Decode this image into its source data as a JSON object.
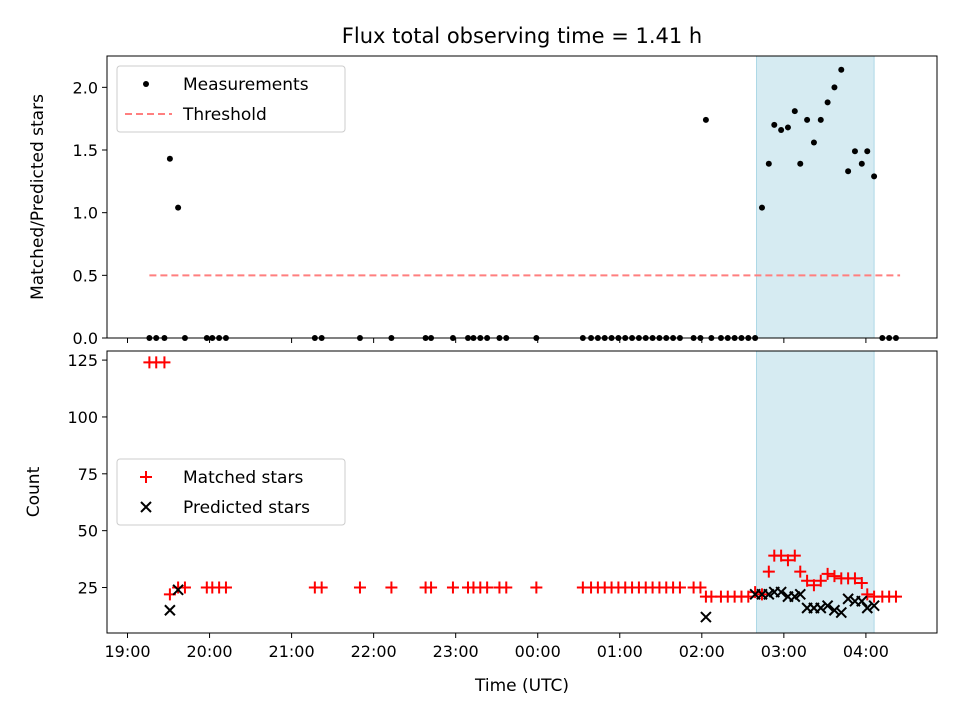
{
  "chart_data": [
    {
      "type": "scatter",
      "title": "Flux total observing time = 1.41 h",
      "xlabel": "",
      "ylabel": "Matched/Predicted stars",
      "ylim": [
        0,
        2.25
      ],
      "yticks": [
        "0.0",
        "0.5",
        "1.0",
        "1.5",
        "2.0"
      ],
      "xlim": [
        "18:45",
        "04:52"
      ],
      "grid": false,
      "legend_position": "top-left",
      "highlight_span": {
        "start": "02:40",
        "end": "04:06",
        "color": "#add8e6"
      },
      "series": [
        {
          "name": "Measurements",
          "marker": "dot",
          "color": "#000000",
          "points": [
            [
              "19:16",
              0
            ],
            [
              "19:21",
              0
            ],
            [
              "19:27",
              0
            ],
            [
              "19:31",
              1.43
            ],
            [
              "19:37",
              1.04
            ],
            [
              "19:42",
              0
            ],
            [
              "19:58",
              0
            ],
            [
              "20:02",
              0
            ],
            [
              "20:07",
              0
            ],
            [
              "20:12",
              0
            ],
            [
              "21:17",
              0
            ],
            [
              "21:22",
              0
            ],
            [
              "21:50",
              0
            ],
            [
              "22:13",
              0
            ],
            [
              "22:38",
              0
            ],
            [
              "22:42",
              0
            ],
            [
              "22:58",
              0
            ],
            [
              "23:09",
              0
            ],
            [
              "23:13",
              0
            ],
            [
              "23:18",
              0
            ],
            [
              "23:23",
              0
            ],
            [
              "23:32",
              0
            ],
            [
              "23:37",
              0
            ],
            [
              "23:59",
              0
            ],
            [
              "00:33",
              0
            ],
            [
              "00:39",
              0
            ],
            [
              "00:44",
              0
            ],
            [
              "00:49",
              0
            ],
            [
              "00:54",
              0
            ],
            [
              "00:59",
              0
            ],
            [
              "01:04",
              0
            ],
            [
              "01:09",
              0
            ],
            [
              "01:14",
              0
            ],
            [
              "01:19",
              0
            ],
            [
              "01:24",
              0
            ],
            [
              "01:29",
              0
            ],
            [
              "01:34",
              0
            ],
            [
              "01:39",
              0
            ],
            [
              "01:44",
              0
            ],
            [
              "01:54",
              0
            ],
            [
              "01:59",
              0
            ],
            [
              "02:03",
              1.74
            ],
            [
              "02:07",
              0
            ],
            [
              "02:14",
              0
            ],
            [
              "02:19",
              0
            ],
            [
              "02:24",
              0
            ],
            [
              "02:29",
              0
            ],
            [
              "02:34",
              0
            ],
            [
              "02:39",
              0
            ],
            [
              "02:44",
              1.04
            ],
            [
              "02:49",
              1.39
            ],
            [
              "02:53",
              1.7
            ],
            [
              "02:58",
              1.66
            ],
            [
              "03:03",
              1.68
            ],
            [
              "03:08",
              1.81
            ],
            [
              "03:12",
              1.39
            ],
            [
              "03:17",
              1.74
            ],
            [
              "03:22",
              1.56
            ],
            [
              "03:27",
              1.74
            ],
            [
              "03:32",
              1.88
            ],
            [
              "03:37",
              2.0
            ],
            [
              "03:42",
              2.14
            ],
            [
              "03:47",
              1.33
            ],
            [
              "03:52",
              1.49
            ],
            [
              "03:57",
              1.39
            ],
            [
              "04:01",
              1.49
            ],
            [
              "04:06",
              1.29
            ],
            [
              "04:12",
              0
            ],
            [
              "04:17",
              0
            ],
            [
              "04:22",
              0
            ]
          ]
        },
        {
          "name": "Threshold",
          "line_style": "dashed",
          "color": "#ff7f7f",
          "points": [
            [
              "19:16",
              0.5
            ],
            [
              "04:25",
              0.5
            ]
          ]
        }
      ]
    },
    {
      "type": "scatter",
      "title": "",
      "xlabel": "Time (UTC)",
      "ylabel": "Count",
      "ylim": [
        5,
        129
      ],
      "yticks": [
        "25",
        "50",
        "75",
        "100",
        "125"
      ],
      "xticks": [
        "19:00",
        "20:00",
        "21:00",
        "22:00",
        "23:00",
        "00:00",
        "01:00",
        "02:00",
        "03:00",
        "04:00"
      ],
      "xlim": [
        "18:45",
        "04:52"
      ],
      "grid": false,
      "legend_position": "center-left",
      "highlight_span": {
        "start": "02:40",
        "end": "04:06",
        "color": "#add8e6"
      },
      "series": [
        {
          "name": "Matched stars",
          "marker": "plus",
          "color": "#ff0000",
          "points": [
            [
              "19:16",
              124
            ],
            [
              "19:21",
              124
            ],
            [
              "19:27",
              124
            ],
            [
              "19:31",
              22
            ],
            [
              "19:37",
              25
            ],
            [
              "19:42",
              25
            ],
            [
              "19:58",
              25
            ],
            [
              "20:02",
              25
            ],
            [
              "20:07",
              25
            ],
            [
              "20:12",
              25
            ],
            [
              "21:17",
              25
            ],
            [
              "21:22",
              25
            ],
            [
              "21:50",
              25
            ],
            [
              "22:13",
              25
            ],
            [
              "22:38",
              25
            ],
            [
              "22:42",
              25
            ],
            [
              "22:58",
              25
            ],
            [
              "23:09",
              25
            ],
            [
              "23:13",
              25
            ],
            [
              "23:18",
              25
            ],
            [
              "23:23",
              25
            ],
            [
              "23:32",
              25
            ],
            [
              "23:37",
              25
            ],
            [
              "23:59",
              25
            ],
            [
              "00:33",
              25
            ],
            [
              "00:39",
              25
            ],
            [
              "00:44",
              25
            ],
            [
              "00:49",
              25
            ],
            [
              "00:54",
              25
            ],
            [
              "00:59",
              25
            ],
            [
              "01:04",
              25
            ],
            [
              "01:09",
              25
            ],
            [
              "01:14",
              25
            ],
            [
              "01:19",
              25
            ],
            [
              "01:24",
              25
            ],
            [
              "01:29",
              25
            ],
            [
              "01:34",
              25
            ],
            [
              "01:39",
              25
            ],
            [
              "01:44",
              25
            ],
            [
              "01:54",
              25
            ],
            [
              "01:59",
              25
            ],
            [
              "02:03",
              21
            ],
            [
              "02:07",
              21
            ],
            [
              "02:14",
              21
            ],
            [
              "02:19",
              21
            ],
            [
              "02:24",
              21
            ],
            [
              "02:29",
              21
            ],
            [
              "02:34",
              21
            ],
            [
              "02:39",
              23
            ],
            [
              "02:44",
              22
            ],
            [
              "02:49",
              32
            ],
            [
              "02:53",
              39
            ],
            [
              "02:58",
              39
            ],
            [
              "03:03",
              37
            ],
            [
              "03:08",
              39
            ],
            [
              "03:12",
              32
            ],
            [
              "03:17",
              28
            ],
            [
              "03:22",
              26
            ],
            [
              "03:27",
              28
            ],
            [
              "03:32",
              31
            ],
            [
              "03:37",
              30
            ],
            [
              "03:42",
              29
            ],
            [
              "03:47",
              29
            ],
            [
              "03:52",
              29
            ],
            [
              "03:57",
              27
            ],
            [
              "04:01",
              22
            ],
            [
              "04:06",
              21
            ],
            [
              "04:12",
              21
            ],
            [
              "04:17",
              21
            ],
            [
              "04:22",
              21
            ]
          ]
        },
        {
          "name": "Predicted stars",
          "marker": "x",
          "color": "#000000",
          "points": [
            [
              "19:31",
              15
            ],
            [
              "19:37",
              24
            ],
            [
              "02:03",
              12
            ],
            [
              "02:39",
              22
            ],
            [
              "02:44",
              22
            ],
            [
              "02:49",
              22
            ],
            [
              "02:53",
              23
            ],
            [
              "02:58",
              23
            ],
            [
              "03:03",
              21
            ],
            [
              "03:08",
              21
            ],
            [
              "03:12",
              22
            ],
            [
              "03:17",
              16
            ],
            [
              "03:22",
              16
            ],
            [
              "03:27",
              16
            ],
            [
              "03:32",
              17
            ],
            [
              "03:37",
              15
            ],
            [
              "03:42",
              14
            ],
            [
              "03:47",
              20
            ],
            [
              "03:52",
              19
            ],
            [
              "03:57",
              19
            ],
            [
              "04:01",
              16
            ],
            [
              "04:06",
              17
            ]
          ]
        }
      ]
    }
  ]
}
